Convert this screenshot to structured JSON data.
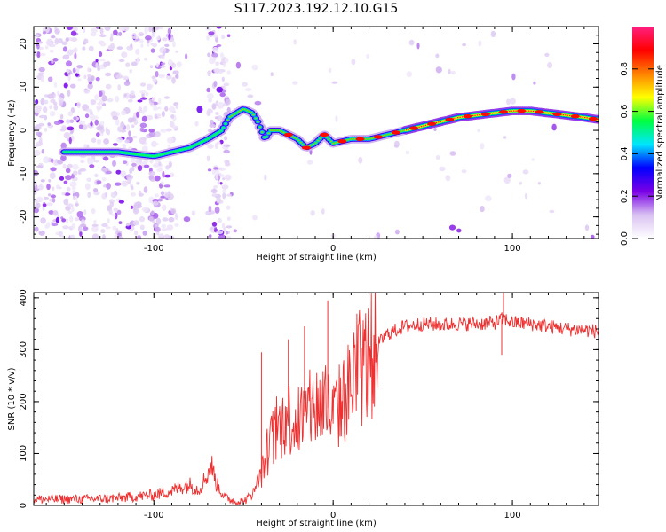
{
  "title": "S117.2023.192.12.10.G15",
  "chart_data": [
    {
      "type": "heatmap",
      "xlabel": "Height of straight line (km)",
      "ylabel": "Frequency (Hz)",
      "xlim": [
        -167,
        148
      ],
      "ylim": [
        -25,
        24
      ],
      "x_ticks": [
        -100,
        0,
        100
      ],
      "y_ticks": [
        -20,
        -10,
        0,
        10,
        20
      ],
      "colorbar": {
        "label": "Normalized spectral amplitude",
        "range": [
          0,
          1
        ],
        "ticks": [
          "0.0",
          "0.2",
          "0.4",
          "0.6",
          "0.8"
        ],
        "colors": [
          "#ffffff",
          "#d9c2f2",
          "#7a00e6",
          "#0000ff",
          "#00e6ff",
          "#00ff40",
          "#ffff00",
          "#ff8000",
          "#ff0000",
          "#ff1f80"
        ]
      },
      "ridge": {
        "description_points_height_km": [
          -150,
          -140,
          -120,
          -100,
          -80,
          -70,
          -62,
          -58,
          -50,
          -45,
          -42,
          -38,
          -35,
          -30,
          -20,
          -15,
          -10,
          -5,
          0,
          10,
          20,
          30,
          40,
          50,
          60,
          70,
          80,
          90,
          100,
          110,
          120,
          130,
          140,
          148
        ],
        "frequency_hz": [
          -5,
          -5,
          -5,
          -6,
          -4,
          -2,
          0,
          3,
          5,
          4,
          2,
          -2,
          0,
          0,
          -2,
          -4,
          -3,
          -1,
          -3,
          -2,
          -2,
          -1,
          0,
          1,
          2,
          3,
          3.5,
          4,
          4.5,
          4.5,
          4,
          3.5,
          3,
          2.5
        ]
      }
    },
    {
      "type": "line",
      "xlabel": "Height of straight line (km)",
      "ylabel": "SNR (10 * v/v)",
      "xlim": [
        -167,
        148
      ],
      "ylim": [
        0,
        410
      ],
      "x_ticks": [
        -100,
        0,
        100
      ],
      "y_ticks": [
        0,
        100,
        200,
        300,
        400
      ],
      "color": "#ee3030",
      "envelope": {
        "x": [
          -167,
          -140,
          -120,
          -100,
          -90,
          -85,
          -80,
          -75,
          -70,
          -68,
          -65,
          -60,
          -55,
          -50,
          -45,
          -40,
          -35,
          -30,
          -25,
          -20,
          -15,
          -10,
          -5,
          0,
          5,
          10,
          15,
          20,
          25,
          30,
          40,
          50,
          60,
          70,
          80,
          90,
          95,
          100,
          110,
          120,
          130,
          140,
          148
        ],
        "y": [
          12,
          12,
          14,
          20,
          28,
          35,
          40,
          30,
          60,
          80,
          40,
          15,
          8,
          8,
          20,
          60,
          120,
          150,
          170,
          160,
          175,
          190,
          200,
          170,
          200,
          230,
          260,
          280,
          310,
          330,
          345,
          350,
          348,
          350,
          350,
          352,
          360,
          352,
          350,
          345,
          340,
          338,
          335
        ]
      },
      "spikes": [
        {
          "x": -3,
          "y": 395
        },
        {
          "x": -16,
          "y": 345
        },
        {
          "x": -25,
          "y": 320
        },
        {
          "x": -40,
          "y": 295
        },
        {
          "x": 95,
          "y": 410
        },
        {
          "x": 94,
          "y": 290
        }
      ]
    }
  ]
}
